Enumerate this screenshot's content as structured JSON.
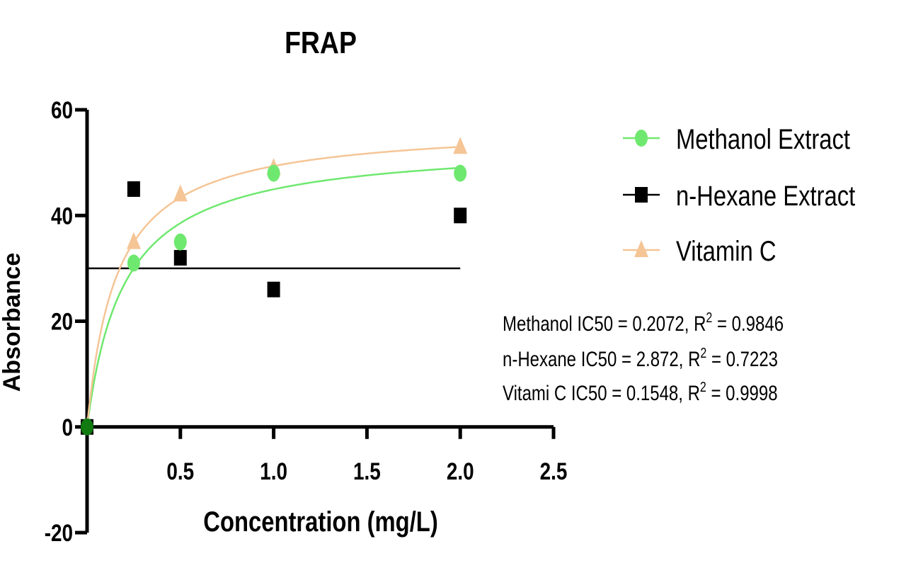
{
  "chart_data": {
    "type": "scatter",
    "title": "FRAP",
    "xlabel": "Concentration (mg/L)",
    "ylabel": "Absorbance",
    "xlim": [
      0,
      2.5
    ],
    "ylim": [
      -20,
      60
    ],
    "xticks": [
      0.5,
      1.0,
      1.5,
      2.0,
      2.5
    ],
    "xtick_labels": [
      "0.5",
      "1.0",
      "1.5",
      "2.0",
      "2.5"
    ],
    "yticks": [
      -20,
      0,
      20,
      40,
      60
    ],
    "ytick_labels": [
      "-20",
      "0",
      "20",
      "40",
      "60"
    ],
    "grid": false,
    "legend_position": "right",
    "reference_line": {
      "y": 30,
      "x_range": [
        0,
        2.0
      ],
      "color": "#000000"
    },
    "series": [
      {
        "name": "Methanol Extract",
        "marker": "circle",
        "color": "#6fe86f",
        "x": [
          0,
          0.25,
          0.5,
          1.0,
          2.0
        ],
        "y": [
          0,
          31,
          35,
          48,
          48
        ],
        "fit": {
          "type": "hyperbolic",
          "ymax": 53.9,
          "k": 0.199
        }
      },
      {
        "name": "n-Hexane Extract",
        "marker": "square",
        "color": "#000000",
        "x": [
          0,
          0.25,
          0.5,
          1.0,
          2.0
        ],
        "y": [
          0,
          45,
          32,
          26,
          40
        ]
      },
      {
        "name": "Vitamin C",
        "marker": "triangle",
        "color": "#f5c596",
        "x": [
          0,
          0.25,
          0.5,
          1.0,
          2.0
        ],
        "y": [
          0,
          35,
          44,
          49,
          53
        ],
        "fit": {
          "type": "hyperbolic",
          "ymax": 57.2,
          "k": 0.159
        }
      }
    ],
    "annotations": [
      {
        "prefix": "Methanol IC50 = 0.2072, R",
        "exp": "2",
        "suffix": " = 0.9846"
      },
      {
        "prefix": "n-Hexane IC50 = 2.872, R",
        "exp": "2",
        "suffix": " = 0.7223"
      },
      {
        "prefix": "Vitami C IC50 = 0.1548, R",
        "exp": "2",
        "suffix": " = 0.9998"
      }
    ]
  }
}
